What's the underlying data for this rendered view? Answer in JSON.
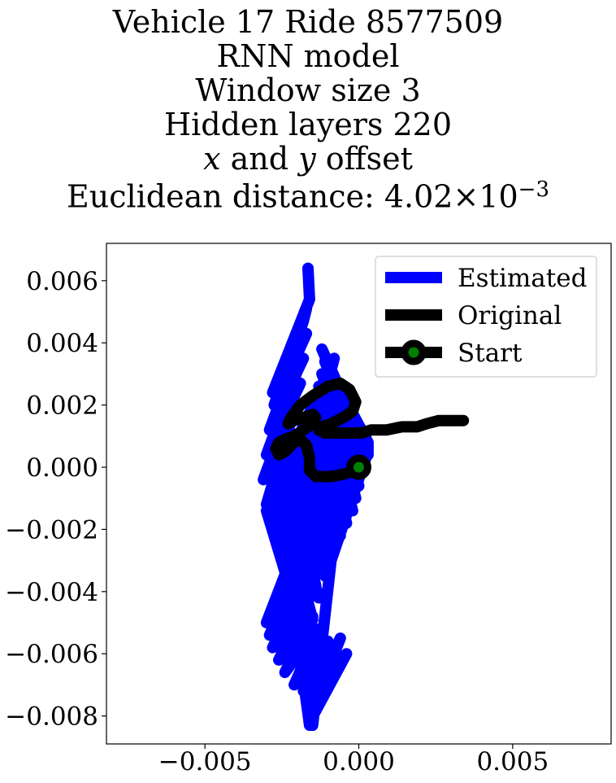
{
  "chart_data": {
    "type": "line",
    "title": {
      "line1": "Vehicle 17 Ride 8577509",
      "line2": "RNN model",
      "line3": "Window size 3",
      "line4": "Hidden layers 220",
      "line5_var1": "x",
      "line5_mid": " and ",
      "line5_var2": "y",
      "line5_end": " offset",
      "line6_prefix": "Euclidean distance: ",
      "line6_mantissa": "4.02",
      "line6_times": "×",
      "line6_base": "10",
      "line6_exp": "−3"
    },
    "xlabel": "",
    "ylabel": "",
    "xlim": [
      -0.0082,
      0.0082
    ],
    "ylim": [
      -0.0089,
      0.0072
    ],
    "xticks": [
      -0.005,
      0.0,
      0.005
    ],
    "xtick_labels": [
      "−0.005",
      "0.000",
      "0.005"
    ],
    "yticks": [
      0.006,
      0.004,
      0.002,
      0.0,
      -0.002,
      -0.004,
      -0.006,
      -0.008
    ],
    "ytick_labels": [
      "0.006",
      "0.004",
      "0.002",
      "0.000",
      "−0.002",
      "−0.004",
      "−0.006",
      "−0.008"
    ],
    "grid": false,
    "legend_position": "top-right",
    "legend": [
      "Estimated",
      "Original",
      "Start"
    ],
    "series": [
      {
        "name": "Estimated",
        "color": "#0000ff",
        "x": [
          -0.00165,
          -0.0016,
          -0.0028,
          -0.0017,
          -0.0018,
          -0.00275,
          -0.0017,
          -0.0019,
          -0.0029,
          -0.0018,
          -0.002,
          -0.003,
          -0.0019,
          -0.0021,
          -0.0031,
          -0.002,
          -0.0022,
          -0.003,
          -0.0019,
          -0.0008,
          -0.0015,
          0.0003,
          -0.0001,
          -0.0012,
          -0.0005,
          -0.0003,
          -0.0014,
          -0.0007,
          -0.0005,
          -0.0016,
          -0.0009,
          -0.0007,
          -0.0018,
          -0.0011,
          -0.0009,
          -0.002,
          -0.0013,
          -0.0011,
          -0.0022,
          -0.0015,
          -0.0013,
          -0.0024,
          -0.0017,
          -0.0015,
          -0.0026,
          -0.0019,
          -0.0017,
          -0.0028,
          -0.0021,
          -0.0019,
          -0.003,
          -0.0017,
          -0.0016,
          -0.0026,
          -0.0015,
          -0.0014,
          -0.0024,
          -0.0013,
          -0.0012,
          -0.0022,
          -0.0011,
          -0.001,
          -0.002,
          -0.0009,
          -0.0008,
          -0.0018,
          -0.0007,
          -0.0006,
          -0.0017,
          -0.0005,
          -0.0004,
          -0.0016,
          -0.0003,
          -0.0002,
          -0.0015,
          -0.0002,
          -0.0001,
          -0.0014,
          -0.0001,
          0.0,
          -0.0013,
          0.0001,
          0.0001,
          -0.0012,
          0.0002,
          0.0002,
          -0.0011,
          0.0003,
          0.0003,
          -0.0012,
          0.0003,
          -0.0009,
          -0.0015,
          -0.0016,
          -0.0004,
          -0.0013,
          -0.0006,
          -0.0008,
          -0.0018,
          -0.001,
          -0.0012,
          -0.0021,
          -0.0013,
          -0.0015,
          -0.0024,
          -0.0015,
          -0.0017,
          -0.0026,
          -0.0017,
          -0.0019,
          -0.0028,
          -0.0019,
          -0.0021,
          -0.0029,
          -0.0021,
          -0.0023,
          -0.003,
          -0.0023,
          -0.0016
        ],
        "y": [
          0.0064,
          0.0054,
          0.0024,
          0.0051,
          0.0047,
          0.002,
          0.0043,
          0.0039,
          0.0012,
          0.0035,
          0.0031,
          0.0004,
          0.0027,
          0.0023,
          -0.0004,
          0.0019,
          0.0015,
          -0.0012,
          0.0011,
          0.0035,
          0.0009,
          0.0005,
          0.0,
          0.0021,
          -0.0003,
          -0.0007,
          0.0016,
          -0.001,
          -0.0014,
          0.0012,
          -0.0017,
          -0.0021,
          0.0008,
          -0.0024,
          -0.0028,
          0.0004,
          -0.0031,
          -0.0035,
          0.0,
          -0.0038,
          -0.0042,
          -0.0004,
          -0.0045,
          -0.0049,
          -0.0008,
          -0.0046,
          -0.005,
          -0.0012,
          -0.0046,
          -0.005,
          -0.0014,
          -0.0038,
          -0.0042,
          -0.001,
          -0.0034,
          -0.0038,
          -0.0006,
          -0.003,
          -0.0034,
          -0.0002,
          -0.0026,
          -0.003,
          0.0002,
          -0.0022,
          -0.0026,
          0.0006,
          -0.0018,
          -0.0022,
          0.001,
          -0.0014,
          -0.0018,
          0.0014,
          -0.001,
          -0.0014,
          0.0018,
          -0.0006,
          -0.001,
          0.0022,
          -0.0002,
          -0.0006,
          0.0026,
          0.0002,
          -0.0002,
          0.003,
          0.0006,
          0.0002,
          0.0034,
          0.0008,
          0.0004,
          0.0038,
          0.0005,
          -0.003,
          -0.0083,
          -0.0082,
          -0.006,
          -0.007,
          -0.0055,
          -0.006,
          -0.0072,
          -0.0056,
          -0.0058,
          -0.007,
          -0.0052,
          -0.0054,
          -0.0066,
          -0.0048,
          -0.005,
          -0.0062,
          -0.0044,
          -0.0046,
          -0.0058,
          -0.004,
          -0.0042,
          -0.0054,
          -0.0036,
          -0.0038,
          -0.005,
          -0.0032,
          -0.0083
        ]
      },
      {
        "name": "Original",
        "color": "#000000",
        "x": [
          0.0,
          -0.0004,
          -0.0009,
          -0.0014,
          -0.0016,
          -0.0016,
          -0.0017,
          -0.0019,
          -0.0021,
          -0.0024,
          -0.0026,
          -0.0027,
          -0.0026,
          -0.0024,
          -0.0021,
          -0.0018,
          -0.0015,
          -0.0014,
          -0.0015,
          -0.0018,
          -0.0021,
          -0.0023,
          -0.0022,
          -0.0019,
          -0.0015,
          -0.001,
          -0.0006,
          -0.0003,
          -0.0001,
          -0.0002,
          -0.0005,
          -0.0009,
          -0.0012,
          -0.0013,
          -0.0011,
          -0.0008,
          -0.0005,
          -0.0002,
          0.0001,
          0.0004,
          0.0009,
          0.0014,
          0.0019,
          0.0022,
          0.0026,
          0.003,
          0.0034
        ],
        "y": [
          0.0,
          -0.0002,
          -0.0003,
          -0.0003,
          -0.0001,
          0.0003,
          0.0007,
          0.0009,
          0.0008,
          0.0005,
          0.0004,
          0.0006,
          0.0008,
          0.0009,
          0.001,
          0.0012,
          0.0014,
          0.0016,
          0.0017,
          0.0016,
          0.0015,
          0.0014,
          0.0016,
          0.002,
          0.0023,
          0.0026,
          0.0027,
          0.0025,
          0.0021,
          0.0018,
          0.0016,
          0.0014,
          0.0013,
          0.0012,
          0.0011,
          0.0011,
          0.0011,
          0.0011,
          0.0011,
          0.0012,
          0.0012,
          0.0013,
          0.0013,
          0.0014,
          0.0015,
          0.0015,
          0.0015
        ]
      }
    ],
    "start_point": {
      "x": 0.0,
      "y": 0.0,
      "marker_color": "#008000",
      "edge_color": "#000000"
    }
  }
}
